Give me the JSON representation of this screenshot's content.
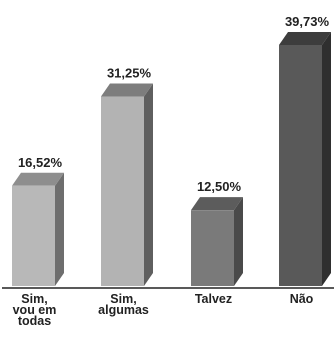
{
  "chart_data": {
    "type": "bar",
    "title": "",
    "xlabel": "",
    "ylabel": "",
    "ylim": [
      0,
      40
    ],
    "grid": false,
    "categories": [
      [
        "Sim,",
        "vou em",
        "todas"
      ],
      [
        "Sim,",
        "algumas"
      ],
      [
        "Talvez"
      ],
      [
        "Não"
      ]
    ],
    "values": [
      16.52,
      31.25,
      12.5,
      39.73
    ],
    "value_labels": [
      "16,52%",
      "31,25%",
      "12,50%",
      "39,73%"
    ],
    "colors": {
      "front": [
        "#b8b8b8",
        "#b3b3b3",
        "#7a7a7a",
        "#595959"
      ],
      "top": [
        "#8e8e8e",
        "#7d7d7d",
        "#5c5c5c",
        "#3d3d3d"
      ],
      "side": [
        "#6e6e6e",
        "#5f5f5f",
        "#4a4a4a",
        "#2f2f2f"
      ],
      "axis": "#222222"
    }
  }
}
